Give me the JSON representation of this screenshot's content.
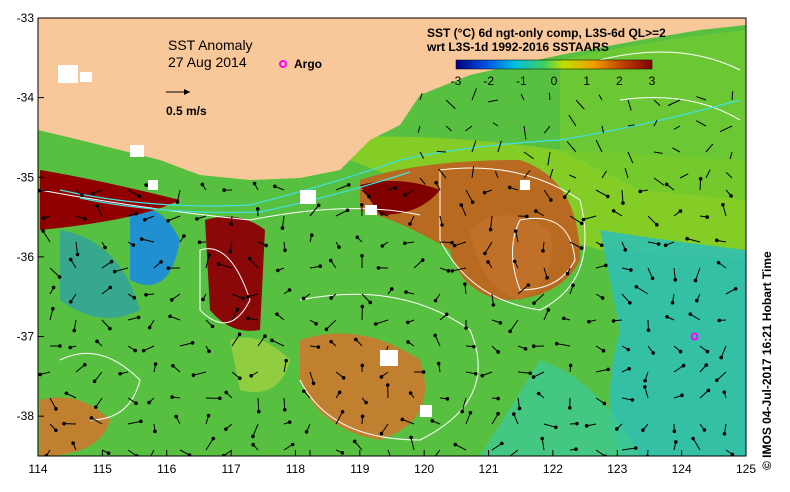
{
  "title": "SST Anomaly",
  "date": "27 Aug 2014",
  "argo_label": "Argo",
  "velocity_scale_label": "0.5 m/s",
  "colorbar": {
    "title_line1": "SST (°C) 6d ngt-only comp, L3S-6d QL>=2",
    "title_line2": "wrt L3S-1d 1992-2016 SSTAARS",
    "ticks": [
      "-3",
      "-2",
      "-1",
      "0",
      "1",
      "2",
      "3"
    ]
  },
  "axes": {
    "lon_ticks": [
      "114",
      "115",
      "116",
      "117",
      "118",
      "119",
      "120",
      "121",
      "122",
      "123",
      "124",
      "125"
    ],
    "lat_ticks": [
      "-33",
      "-34",
      "-35",
      "-36",
      "-37",
      "-38"
    ]
  },
  "credit": "© IMOS 04-Jul-2017 16:21 Hobart Time",
  "colors": {
    "land": "#f8c89a",
    "argo": "#ff00ff",
    "contour": "#ffffff",
    "coast_contour": "#40e0e0"
  },
  "argo_float": {
    "lon": 124.2,
    "lat": -37.0
  }
}
